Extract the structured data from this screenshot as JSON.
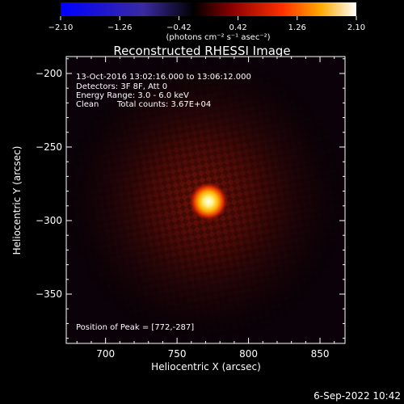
{
  "colorbar": {
    "ticks": [
      "−2.10",
      "−1.26",
      "−0.42",
      "0.42",
      "1.26",
      "2.10"
    ],
    "unit_label": "(photons cm⁻² s⁻¹ asec⁻²)"
  },
  "title": "Reconstructed RHESSI Image",
  "info": {
    "time_range": "13-Oct-2016 13:02:16.000 to 13:06:12.000",
    "detectors": "Detectors: 3F 8F, Att 0",
    "energy": "Energy Range: 3.0 - 6.0 keV",
    "method": "Clean",
    "counts": "Total counts: 3.67E+04",
    "peak": "Position of Peak = [772,-287]"
  },
  "axes": {
    "xlabel": "Heliocentric X (arcsec)",
    "ylabel": "Heliocentric Y (arcsec)",
    "xticks": [
      {
        "v": 700,
        "label": "700"
      },
      {
        "v": 750,
        "label": "750"
      },
      {
        "v": 800,
        "label": "800"
      },
      {
        "v": 850,
        "label": "850"
      }
    ],
    "yticks": [
      {
        "v": -200,
        "label": "−200"
      },
      {
        "v": -250,
        "label": "−250"
      },
      {
        "v": -300,
        "label": "−300"
      },
      {
        "v": -350,
        "label": "−350"
      }
    ],
    "xlim": [
      672.5,
      867.5
    ],
    "ylim": [
      -383.5,
      -188.5
    ]
  },
  "source": {
    "x": 772,
    "y": -287
  },
  "timestamp": "6-Sep-2022 10:42"
}
